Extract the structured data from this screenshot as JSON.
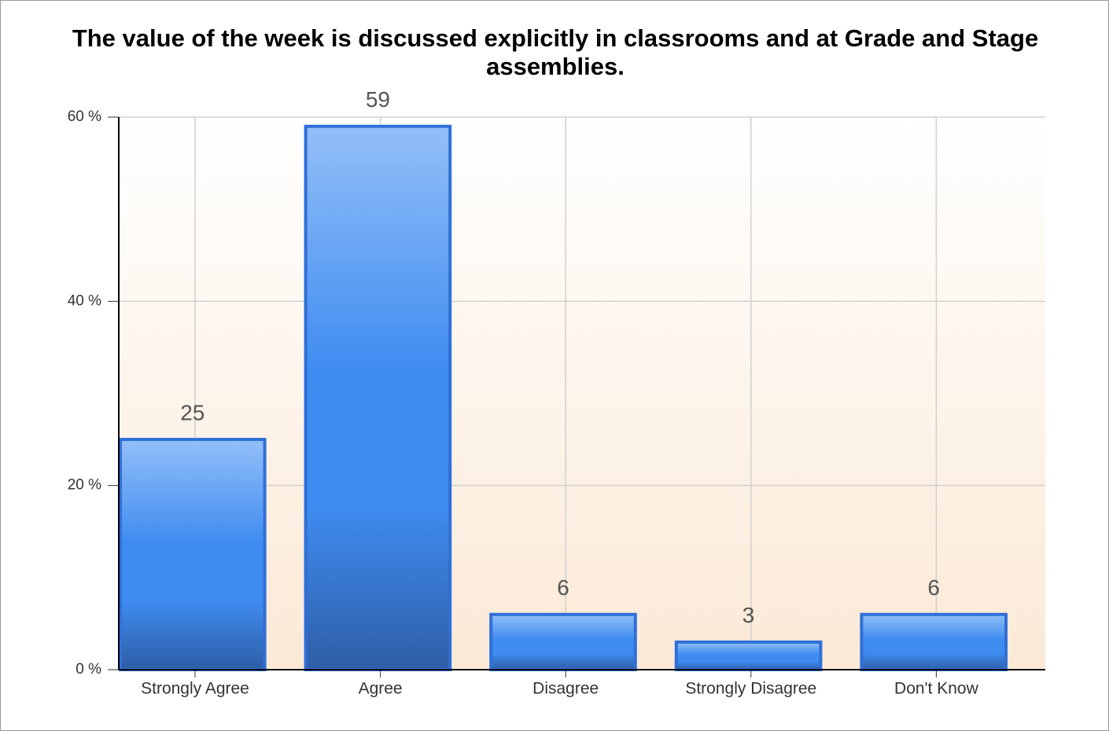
{
  "chart_data": {
    "type": "bar",
    "title": "The value of the week is discussed explicitly in classrooms and at Grade and Stage assemblies.",
    "categories": [
      "Strongly Agree",
      "Agree",
      "Disagree",
      "Strongly Disagree",
      "Don't Know"
    ],
    "values": [
      25,
      59,
      6,
      3,
      6
    ],
    "color": "#3f8cf0",
    "ylim": [
      0,
      60
    ],
    "yticks": [
      {
        "value": 0,
        "label": "0 %"
      },
      {
        "value": 20,
        "label": "20 %"
      },
      {
        "value": 40,
        "label": "40 %"
      },
      {
        "value": 60,
        "label": "60 %"
      }
    ],
    "grid": true
  }
}
